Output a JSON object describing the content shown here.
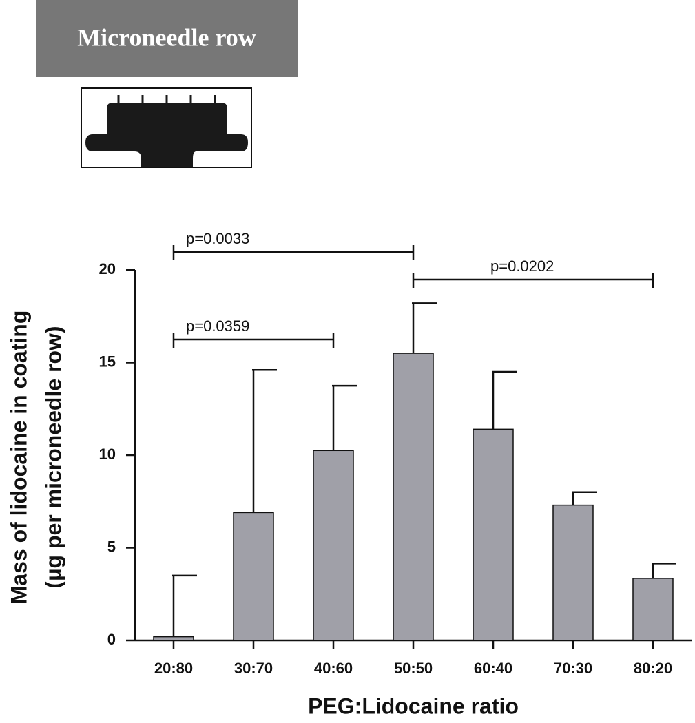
{
  "chart_data": {
    "type": "bar",
    "inset_label": "Microneedle row",
    "xlabel": "PEG:Lidocaine ratio",
    "ylabel": [
      "Mass of lidocaine in coating",
      "(µg per microneedle row)"
    ],
    "categories": [
      "20:80",
      "30:70",
      "40:60",
      "50:50",
      "60:40",
      "70:30",
      "80:20"
    ],
    "values": [
      0.2,
      6.9,
      10.25,
      15.5,
      11.4,
      7.3,
      3.35
    ],
    "errors": [
      3.3,
      7.7,
      3.5,
      2.7,
      3.1,
      0.7,
      0.8
    ],
    "color": "#a0a0a8",
    "ylim": [
      0,
      20
    ],
    "yticks": [
      0,
      5,
      10,
      15,
      20
    ],
    "annotations": [
      {
        "label": "p=0.0033",
        "from": "20:80",
        "to": "50:50"
      },
      {
        "label": "p=0.0359",
        "from": "20:80",
        "to": "40:60"
      },
      {
        "label": "p=0.0202",
        "from": "50:50",
        "to": "80:20"
      }
    ]
  }
}
